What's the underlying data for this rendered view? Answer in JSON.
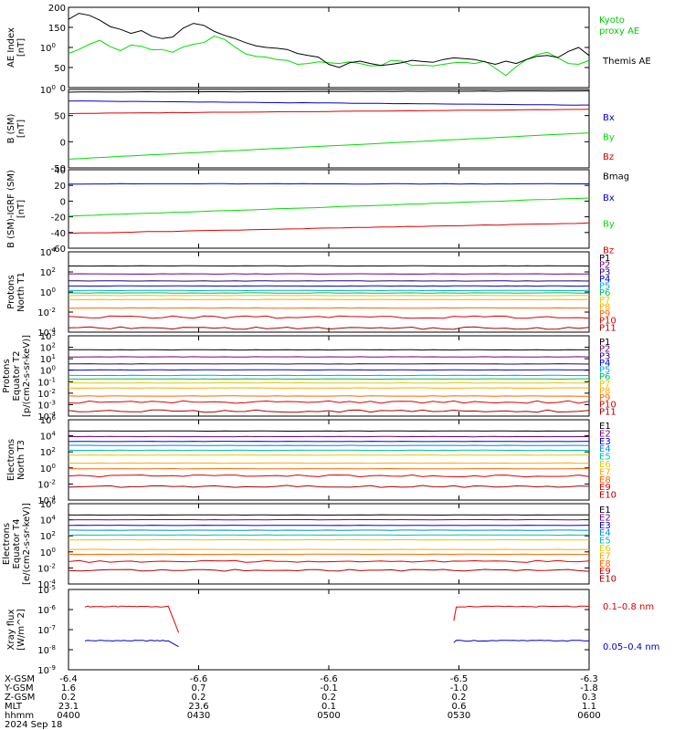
{
  "chart_data": [
    {
      "type": "line",
      "ylabel": "AE Index\n[nT]",
      "ylim": [
        0,
        200
      ],
      "yticks": [
        "0",
        "50",
        "100",
        "150",
        "200"
      ],
      "x": [
        0,
        0.02,
        0.04,
        0.06,
        0.08,
        0.1,
        0.12,
        0.14,
        0.16,
        0.18,
        0.2,
        0.22,
        0.24,
        0.26,
        0.28,
        0.3,
        0.32,
        0.34,
        0.36,
        0.38,
        0.4,
        0.42,
        0.44,
        0.46,
        0.48,
        0.5,
        0.52,
        0.54,
        0.56,
        0.58,
        0.6,
        0.62,
        0.64,
        0.66,
        0.68,
        0.7,
        0.72,
        0.74,
        0.76,
        0.78,
        0.8,
        0.82,
        0.84,
        0.86,
        0.88,
        0.9,
        0.92,
        0.94,
        0.96,
        0.98,
        1.0
      ],
      "series": [
        {
          "name": "Kyoto\nproxy AE",
          "color": "#00dd00",
          "values": [
            85,
            95,
            108,
            118,
            102,
            92,
            106,
            103,
            94,
            95,
            88,
            101,
            108,
            112,
            128,
            120,
            101,
            84,
            78,
            76,
            70,
            68,
            58,
            60,
            64,
            62,
            60,
            64,
            60,
            54,
            55,
            68,
            66,
            55,
            56,
            54,
            58,
            62,
            63,
            60,
            66,
            48,
            30,
            52,
            70,
            82,
            88,
            74,
            60,
            58,
            68
          ]
        },
        {
          "name": "Themis AE",
          "color": "#000000",
          "values": [
            170,
            185,
            180,
            168,
            152,
            145,
            135,
            142,
            128,
            122,
            126,
            148,
            160,
            155,
            140,
            130,
            122,
            112,
            104,
            100,
            98,
            95,
            85,
            80,
            76,
            58,
            50,
            62,
            66,
            60,
            55,
            58,
            62,
            68,
            65,
            63,
            70,
            74,
            72,
            70,
            64,
            58,
            66,
            60,
            70,
            78,
            80,
            75,
            90,
            100,
            80
          ]
        }
      ],
      "legend": [
        "Kyoto\nproxy AE",
        "Themis AE"
      ]
    },
    {
      "type": "line",
      "ylabel": "B (SM)\n[nT]",
      "ylim": [
        -50,
        100
      ],
      "yticks": [
        "-50",
        "0",
        "50",
        "100"
      ],
      "series": [
        {
          "name": "Bx",
          "color": "#0000cc",
          "start": 78,
          "end": 70
        },
        {
          "name": "By",
          "color": "#00dd00",
          "start": -33,
          "end": 17
        },
        {
          "name": "Bz",
          "color": "#dd0000",
          "start": 54,
          "end": 62
        },
        {
          "name": "Bmag",
          "color": "#000000",
          "start": 95,
          "end": 97
        }
      ]
    },
    {
      "type": "line",
      "ylabel": "B (SM)-IGRF (SM)\n[nT]",
      "ylim": [
        -60,
        40
      ],
      "yticks": [
        "-60",
        "-40",
        "-20",
        "0",
        "20",
        "40"
      ],
      "series": [
        {
          "name": "Bx",
          "color": "#0000cc",
          "start": 22,
          "end": 22
        },
        {
          "name": "By",
          "color": "#00dd00",
          "start": -19,
          "end": 4
        },
        {
          "name": "Bz",
          "color": "#dd0000",
          "start": -41,
          "end": -28
        }
      ]
    },
    {
      "type": "line",
      "ylabel": "Protons\nNorth T1",
      "ylog": [
        -4,
        4
      ],
      "yticks": [
        "10-4",
        "10-2",
        "100",
        "102",
        "104"
      ],
      "channels": [
        "P1",
        "P2",
        "P3",
        "P4",
        "P5",
        "P6",
        "P7",
        "P8",
        "P9",
        "P10",
        "P11"
      ],
      "levels": [
        2.6,
        1.8,
        1.1,
        0.6,
        0.15,
        -0.1,
        -0.35,
        -0.75,
        -1.6,
        -2.5,
        -3.6
      ]
    },
    {
      "type": "line",
      "ylabel": "Protons\nEquator T2\n[p/(cm2-s-sr-keV)]",
      "ylog": [
        -4,
        4
      ],
      "yticks": [
        "10-4",
        "10-3",
        "10-2",
        "10-1",
        "100",
        "101",
        "102",
        "103"
      ],
      "channels": [
        "P1",
        "P2",
        "P3",
        "P4",
        "P5",
        "P6",
        "P7",
        "P8",
        "P9",
        "P10",
        "P11"
      ],
      "levels": [
        2.6,
        1.9,
        1.2,
        0.6,
        0.05,
        -0.3,
        -0.7,
        -1.2,
        -2.0,
        -2.6,
        -3.5
      ]
    },
    {
      "type": "line",
      "ylabel": "Electrons\nNorth T3",
      "ylog": [
        -4,
        6
      ],
      "yticks": [
        "10-4",
        "10-2",
        "100",
        "102",
        "104",
        "106"
      ],
      "channels": [
        "E1",
        "E2",
        "E3",
        "E4",
        "E5",
        "E6",
        "E7",
        "E8",
        "E9",
        "E10"
      ],
      "levels": [
        4.6,
        3.9,
        3.3,
        2.8,
        2.2,
        1.6,
        0.6,
        -0.1,
        -1.0,
        -2.3
      ]
    },
    {
      "type": "line",
      "ylabel": "Electrons\nEquator T4\n[e/(cm2-s-sr-keV)]",
      "ylog": [
        -4,
        6
      ],
      "yticks": [
        "10-4",
        "10-2",
        "100",
        "102",
        "104",
        "106"
      ],
      "channels": [
        "E1",
        "E2",
        "E3",
        "E4",
        "E5",
        "E6",
        "E7",
        "E8",
        "E9",
        "E10"
      ],
      "levels": [
        4.6,
        4.0,
        3.3,
        2.7,
        2.1,
        1.5,
        0.3,
        -0.3,
        -1.2,
        -2.3
      ]
    },
    {
      "type": "line",
      "ylabel": "Xray flux\n[W/m^2]",
      "ylog": [
        -9,
        -5
      ],
      "yticks": [
        "10-9",
        "10-8",
        "10-7",
        "10-6",
        "10-5"
      ],
      "series": [
        {
          "name": "0.1–0.8 nm",
          "color": "#dd0000",
          "level": -5.85
        },
        {
          "name": "0.05–0.4 nm",
          "color": "#0000cc",
          "level": -7.55
        }
      ]
    }
  ],
  "channel_colors": {
    "P": [
      "#000000",
      "#770077",
      "#220088",
      "#0000dd",
      "#00aadd",
      "#00bb66",
      "#ddcc00",
      "#ffaa00",
      "#ff6600",
      "#dd0000",
      "#aa0000"
    ],
    "E": [
      "#000000",
      "#770077",
      "#0000cc",
      "#0088dd",
      "#00bbbb",
      "#ddcc00",
      "#ffaa00",
      "#ff6600",
      "#dd0000",
      "#aa0000"
    ]
  },
  "xaxis": {
    "rows": [
      {
        "label": "X-GSM",
        "values": [
          "-6.4",
          "-6.6",
          "-6.6",
          "-6.5",
          "-6.3"
        ]
      },
      {
        "label": "Y-GSM",
        "values": [
          "1.6",
          "0.7",
          "-0.1",
          "-1.0",
          "-1.8"
        ]
      },
      {
        "label": "Z-GSM",
        "values": [
          "0.2",
          "0.2",
          "0.2",
          "0.2",
          "0.3"
        ]
      },
      {
        "label": "MLT",
        "values": [
          "23.1",
          "23.6",
          "0.1",
          "0.6",
          "1.1"
        ]
      },
      {
        "label": "hhmm",
        "values": [
          "0400",
          "0430",
          "0500",
          "0530",
          "0600"
        ]
      }
    ],
    "date": "2024 Sep 18"
  }
}
